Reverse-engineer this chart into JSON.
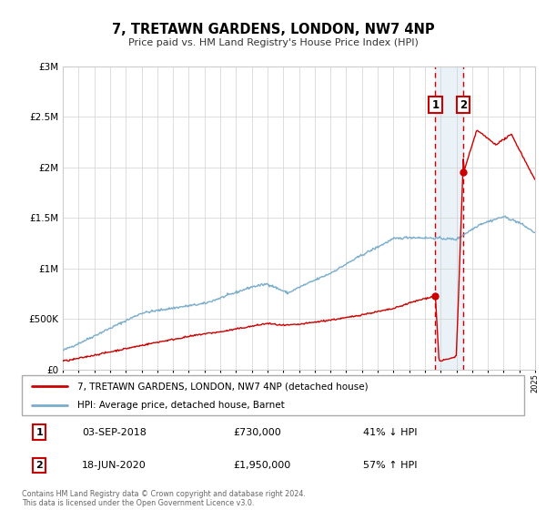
{
  "title": "7, TRETAWN GARDENS, LONDON, NW7 4NP",
  "subtitle": "Price paid vs. HM Land Registry's House Price Index (HPI)",
  "red_label": "7, TRETAWN GARDENS, LONDON, NW7 4NP (detached house)",
  "blue_label": "HPI: Average price, detached house, Barnet",
  "sale1_date": "03-SEP-2018",
  "sale1_price": "£730,000",
  "sale1_pct": "41% ↓ HPI",
  "sale2_date": "18-JUN-2020",
  "sale2_price": "£1,950,000",
  "sale2_pct": "57% ↑ HPI",
  "sale1_year": 2018.67,
  "sale2_year": 2020.46,
  "sale1_value": 730000,
  "sale2_value": 1950000,
  "footer": "Contains HM Land Registry data © Crown copyright and database right 2024.\nThis data is licensed under the Open Government Licence v3.0.",
  "red_color": "#cc0000",
  "blue_color": "#7aadcc",
  "background_shade": "#dde8f3",
  "ylim_max": 3000000,
  "xlim_min": 1995,
  "xlim_max": 2025
}
